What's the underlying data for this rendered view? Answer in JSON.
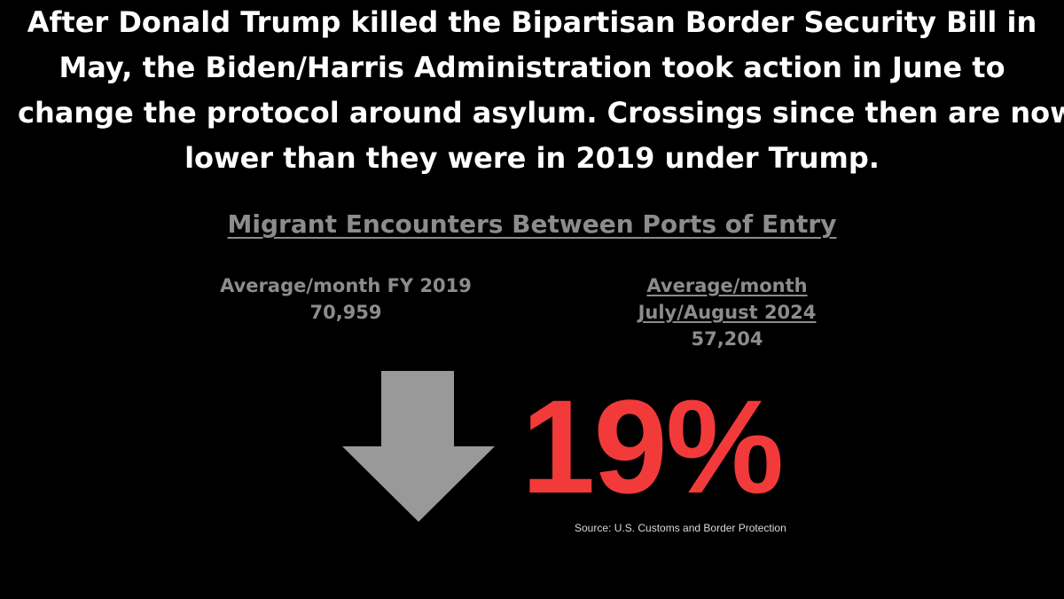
{
  "headline": {
    "lines": [
      "After Donald Trump killed the Bipartisan Border Security Bill in",
      "May, the Biden/Harris Administration took action in June to",
      "change the protocol around asylum. Crossings since then are now",
      "lower than they were in 2019 under Trump."
    ]
  },
  "subtitle": "Migrant Encounters Between Ports of Entry",
  "stats": {
    "left": {
      "label": "Average/month FY 2019",
      "value": "70,959"
    },
    "right": {
      "label_line1": "Average/month",
      "label_line2": "July/August 2024",
      "value": "57,204"
    }
  },
  "change": {
    "percent": "19%",
    "direction_icon": "arrow-down-icon"
  },
  "source": "Source: U.S. Customs and Border Protection",
  "colors": {
    "background": "#000000",
    "headline": "#ffffff",
    "muted": "#8c8c8c",
    "arrow": "#999999",
    "percent": "#f23a3a",
    "source": "#d9d9d9"
  }
}
